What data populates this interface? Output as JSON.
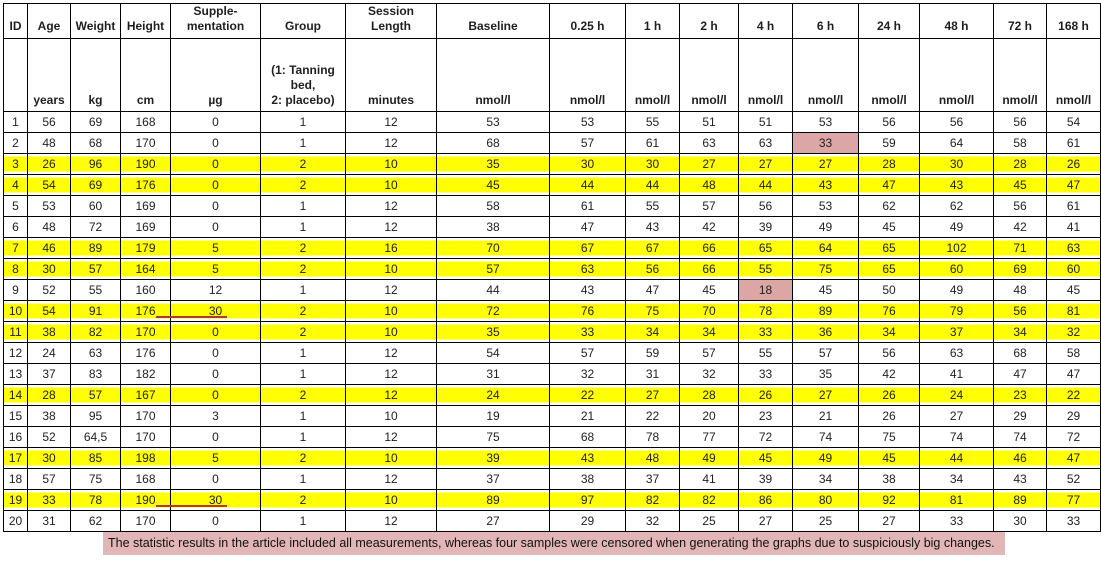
{
  "columns": [
    {
      "label": "ID",
      "unit": ""
    },
    {
      "label": "Age",
      "unit": "years"
    },
    {
      "label": "Weight",
      "unit": "kg"
    },
    {
      "label": "Height",
      "unit": "cm"
    },
    {
      "label": "Supple-\nmentation",
      "unit": "µg"
    },
    {
      "label": "Group",
      "unit": "(1: Tanning\nbed,\n2: placebo)"
    },
    {
      "label": "Session\nLength",
      "unit": "minutes"
    },
    {
      "label": "Baseline",
      "unit": "nmol/l"
    },
    {
      "label": "0.25 h",
      "unit": "nmol/l"
    },
    {
      "label": "1 h",
      "unit": "nmol/l"
    },
    {
      "label": "2 h",
      "unit": "nmol/l"
    },
    {
      "label": "4 h",
      "unit": "nmol/l"
    },
    {
      "label": "6 h",
      "unit": "nmol/l"
    },
    {
      "label": "24 h",
      "unit": "nmol/l"
    },
    {
      "label": "48 h",
      "unit": "nmol/l"
    },
    {
      "label": "72 h",
      "unit": "nmol/l"
    },
    {
      "label": "168 h",
      "unit": "nmol/l"
    }
  ],
  "rows": [
    {
      "cells": [
        "1",
        "56",
        "69",
        "168",
        "0",
        "1",
        "12",
        "53",
        "53",
        "55",
        "51",
        "51",
        "53",
        "56",
        "56",
        "56",
        "54"
      ],
      "row_highlight": false
    },
    {
      "cells": [
        "2",
        "48",
        "68",
        "170",
        "0",
        "1",
        "12",
        "68",
        "57",
        "61",
        "63",
        "63",
        "33",
        "59",
        "64",
        "58",
        "61"
      ],
      "row_highlight": false,
      "cell_marks": {
        "12": "pink"
      }
    },
    {
      "cells": [
        "3",
        "26",
        "96",
        "190",
        "0",
        "2",
        "10",
        "35",
        "30",
        "30",
        "27",
        "27",
        "27",
        "28",
        "30",
        "28",
        "26"
      ],
      "row_highlight": true
    },
    {
      "cells": [
        "4",
        "54",
        "69",
        "176",
        "0",
        "2",
        "10",
        "45",
        "44",
        "44",
        "48",
        "44",
        "43",
        "47",
        "43",
        "45",
        "47"
      ],
      "row_highlight": true
    },
    {
      "cells": [
        "5",
        "53",
        "60",
        "169",
        "0",
        "1",
        "12",
        "58",
        "61",
        "55",
        "57",
        "56",
        "53",
        "62",
        "62",
        "56",
        "61"
      ],
      "row_highlight": false
    },
    {
      "cells": [
        "6",
        "48",
        "72",
        "169",
        "0",
        "1",
        "12",
        "38",
        "47",
        "43",
        "42",
        "39",
        "49",
        "45",
        "49",
        "42",
        "41"
      ],
      "row_highlight": false
    },
    {
      "cells": [
        "7",
        "46",
        "89",
        "179",
        "5",
        "2",
        "16",
        "70",
        "67",
        "67",
        "66",
        "65",
        "64",
        "65",
        "102",
        "71",
        "63"
      ],
      "row_highlight": true,
      "cell_marks": {
        "14": "pink-on-yellow"
      }
    },
    {
      "cells": [
        "8",
        "30",
        "57",
        "164",
        "5",
        "2",
        "10",
        "57",
        "63",
        "56",
        "66",
        "55",
        "75",
        "65",
        "60",
        "69",
        "60"
      ],
      "row_highlight": true
    },
    {
      "cells": [
        "9",
        "52",
        "55",
        "160",
        "12",
        "1",
        "12",
        "44",
        "43",
        "47",
        "45",
        "18",
        "45",
        "50",
        "49",
        "48",
        "45"
      ],
      "row_highlight": false,
      "cell_marks": {
        "11": "pink"
      }
    },
    {
      "cells": [
        "10",
        "54",
        "91",
        "176",
        "30",
        "2",
        "10",
        "72",
        "76",
        "75",
        "70",
        "78",
        "89",
        "76",
        "79",
        "56",
        "81"
      ],
      "row_highlight": true,
      "cell_marks": {
        "15": "pink-on-yellow"
      },
      "red_underline": true
    },
    {
      "cells": [
        "11",
        "38",
        "82",
        "170",
        "0",
        "2",
        "10",
        "35",
        "33",
        "34",
        "34",
        "33",
        "36",
        "34",
        "37",
        "34",
        "32"
      ],
      "row_highlight": true
    },
    {
      "cells": [
        "12",
        "24",
        "63",
        "176",
        "0",
        "1",
        "12",
        "54",
        "57",
        "59",
        "57",
        "55",
        "57",
        "56",
        "63",
        "68",
        "58"
      ],
      "row_highlight": false
    },
    {
      "cells": [
        "13",
        "37",
        "83",
        "182",
        "0",
        "1",
        "12",
        "31",
        "32",
        "31",
        "32",
        "33",
        "35",
        "42",
        "41",
        "47",
        "47"
      ],
      "row_highlight": false
    },
    {
      "cells": [
        "14",
        "28",
        "57",
        "167",
        "0",
        "2",
        "12",
        "24",
        "22",
        "27",
        "28",
        "26",
        "27",
        "26",
        "24",
        "23",
        "22"
      ],
      "row_highlight": true
    },
    {
      "cells": [
        "15",
        "38",
        "95",
        "170",
        "3",
        "1",
        "10",
        "19",
        "21",
        "22",
        "20",
        "23",
        "21",
        "26",
        "27",
        "29",
        "29"
      ],
      "row_highlight": false
    },
    {
      "cells": [
        "16",
        "52",
        "64,5",
        "170",
        "0",
        "1",
        "12",
        "75",
        "68",
        "78",
        "77",
        "72",
        "74",
        "75",
        "74",
        "74",
        "72"
      ],
      "row_highlight": false
    },
    {
      "cells": [
        "17",
        "30",
        "85",
        "198",
        "5",
        "2",
        "10",
        "39",
        "43",
        "48",
        "49",
        "45",
        "49",
        "45",
        "44",
        "46",
        "47"
      ],
      "row_highlight": true
    },
    {
      "cells": [
        "18",
        "57",
        "75",
        "168",
        "0",
        "1",
        "12",
        "37",
        "38",
        "37",
        "41",
        "39",
        "34",
        "38",
        "34",
        "43",
        "52"
      ],
      "row_highlight": false
    },
    {
      "cells": [
        "19",
        "33",
        "78",
        "190",
        "30",
        "2",
        "10",
        "89",
        "97",
        "82",
        "82",
        "86",
        "80",
        "92",
        "81",
        "89",
        "77"
      ],
      "row_highlight": true,
      "red_underline": true
    },
    {
      "cells": [
        "20",
        "31",
        "62",
        "170",
        "0",
        "1",
        "12",
        "27",
        "29",
        "32",
        "25",
        "27",
        "25",
        "27",
        "33",
        "30",
        "33"
      ],
      "row_highlight": false
    }
  ],
  "note": {
    "text": "The statistic results in the article included all measurements, whereas four samples were censored when generating the graphs due to suspiciously big changes."
  },
  "colors": {
    "row_highlight": "#ffff00",
    "cell_flag_pink": "#dca6a6",
    "cell_flag_orange_overlap": "#d2a02c",
    "note_bg": "#e2b6b6",
    "red_underline": "#b03a33"
  }
}
